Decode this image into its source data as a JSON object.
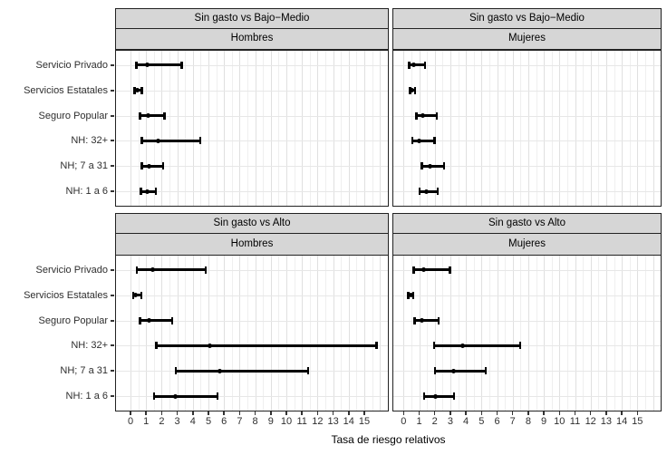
{
  "colors": {
    "background": "#ffffff",
    "strip_bg": "#d6d6d6",
    "strip_border": "#222222",
    "panel_border": "#222222",
    "grid_major": "#e0e0e0",
    "grid_minor": "#efefef",
    "grid_horizontal": "#e7e7e7",
    "data": "#000000",
    "axis_text": "#2e2e2e",
    "tick": "#333333"
  },
  "chart_data": {
    "type": "scatter",
    "subtype": "2x2 faceted horizontal error-bar (forest) plot of relative risk ratios with point estimates and CI whiskers",
    "title": "",
    "xlabel": "Tasa de riesgo relativos",
    "ylabel": "",
    "x_ticks": [
      0,
      1,
      2,
      3,
      4,
      5,
      6,
      7,
      8,
      9,
      10,
      11,
      12,
      13,
      14,
      15
    ],
    "xlim": [
      -0.95,
      16.6
    ],
    "grid": "vertical major gridlines at integers, minor at 0.5 steps, faint horizontal gridline per category; light gray on white",
    "legend": "none",
    "categories": [
      "Servicio Privado",
      "Servicios Estatales",
      "Seguro Popular",
      "NH: 32+",
      "NH; 7 a 31",
      "NH: 1 a 6"
    ],
    "facet_rows": [
      "Sin gasto vs Bajo−Medio",
      "Sin gasto vs Alto"
    ],
    "facet_cols": [
      "Hombres",
      "Mujeres"
    ],
    "panels": [
      {
        "row_title": "Sin gasto vs Bajo−Medio",
        "col_title": "Hombres",
        "points": [
          {
            "category": "Servicio Privado",
            "lo": 0.35,
            "est": 1.1,
            "hi": 3.3
          },
          {
            "category": "Servicios Estatales",
            "lo": 0.25,
            "est": 0.45,
            "hi": 0.75
          },
          {
            "category": "Seguro Popular",
            "lo": 0.6,
            "est": 1.15,
            "hi": 2.2
          },
          {
            "category": "NH: 32+",
            "lo": 0.7,
            "est": 1.8,
            "hi": 4.5
          },
          {
            "category": "NH; 7 a 31",
            "lo": 0.7,
            "est": 1.2,
            "hi": 2.1
          },
          {
            "category": "NH: 1 a 6",
            "lo": 0.65,
            "est": 1.05,
            "hi": 1.65
          }
        ]
      },
      {
        "row_title": "Sin gasto vs Bajo−Medio",
        "col_title": "Mujeres",
        "points": [
          {
            "category": "Servicio Privado",
            "lo": 0.35,
            "est": 0.65,
            "hi": 1.4
          },
          {
            "category": "Servicios Estatales",
            "lo": 0.4,
            "est": 0.55,
            "hi": 0.75
          },
          {
            "category": "Seguro Popular",
            "lo": 0.8,
            "est": 1.25,
            "hi": 2.15
          },
          {
            "category": "NH: 32+",
            "lo": 0.55,
            "est": 1.0,
            "hi": 2.0
          },
          {
            "category": "NH; 7 a 31",
            "lo": 1.15,
            "est": 1.7,
            "hi": 2.6
          },
          {
            "category": "NH: 1 a 6",
            "lo": 1.0,
            "est": 1.45,
            "hi": 2.2
          }
        ]
      },
      {
        "row_title": "Sin gasto vs Alto",
        "col_title": "Hombres",
        "points": [
          {
            "category": "Servicio Privado",
            "lo": 0.4,
            "est": 1.4,
            "hi": 4.85
          },
          {
            "category": "Servicios Estatales",
            "lo": 0.15,
            "est": 0.3,
            "hi": 0.7
          },
          {
            "category": "Seguro Popular",
            "lo": 0.6,
            "est": 1.2,
            "hi": 2.7
          },
          {
            "category": "NH: 32+",
            "lo": 1.65,
            "est": 5.1,
            "hi": 15.8
          },
          {
            "category": "NH; 7 a 31",
            "lo": 2.9,
            "est": 5.75,
            "hi": 11.4
          },
          {
            "category": "NH: 1 a 6",
            "lo": 1.5,
            "est": 2.9,
            "hi": 5.6
          }
        ]
      },
      {
        "row_title": "Sin gasto vs Alto",
        "col_title": "Mujeres",
        "points": [
          {
            "category": "Servicio Privado",
            "lo": 0.65,
            "est": 1.3,
            "hi": 3.0
          },
          {
            "category": "Servicios Estatales",
            "lo": 0.3,
            "est": 0.45,
            "hi": 0.65
          },
          {
            "category": "Seguro Popular",
            "lo": 0.7,
            "est": 1.2,
            "hi": 2.25
          },
          {
            "category": "NH: 32+",
            "lo": 1.95,
            "est": 3.8,
            "hi": 7.5
          },
          {
            "category": "NH; 7 a 31",
            "lo": 2.0,
            "est": 3.2,
            "hi": 5.3
          },
          {
            "category": "NH: 1 a 6",
            "lo": 1.3,
            "est": 2.05,
            "hi": 3.25
          }
        ]
      }
    ]
  }
}
